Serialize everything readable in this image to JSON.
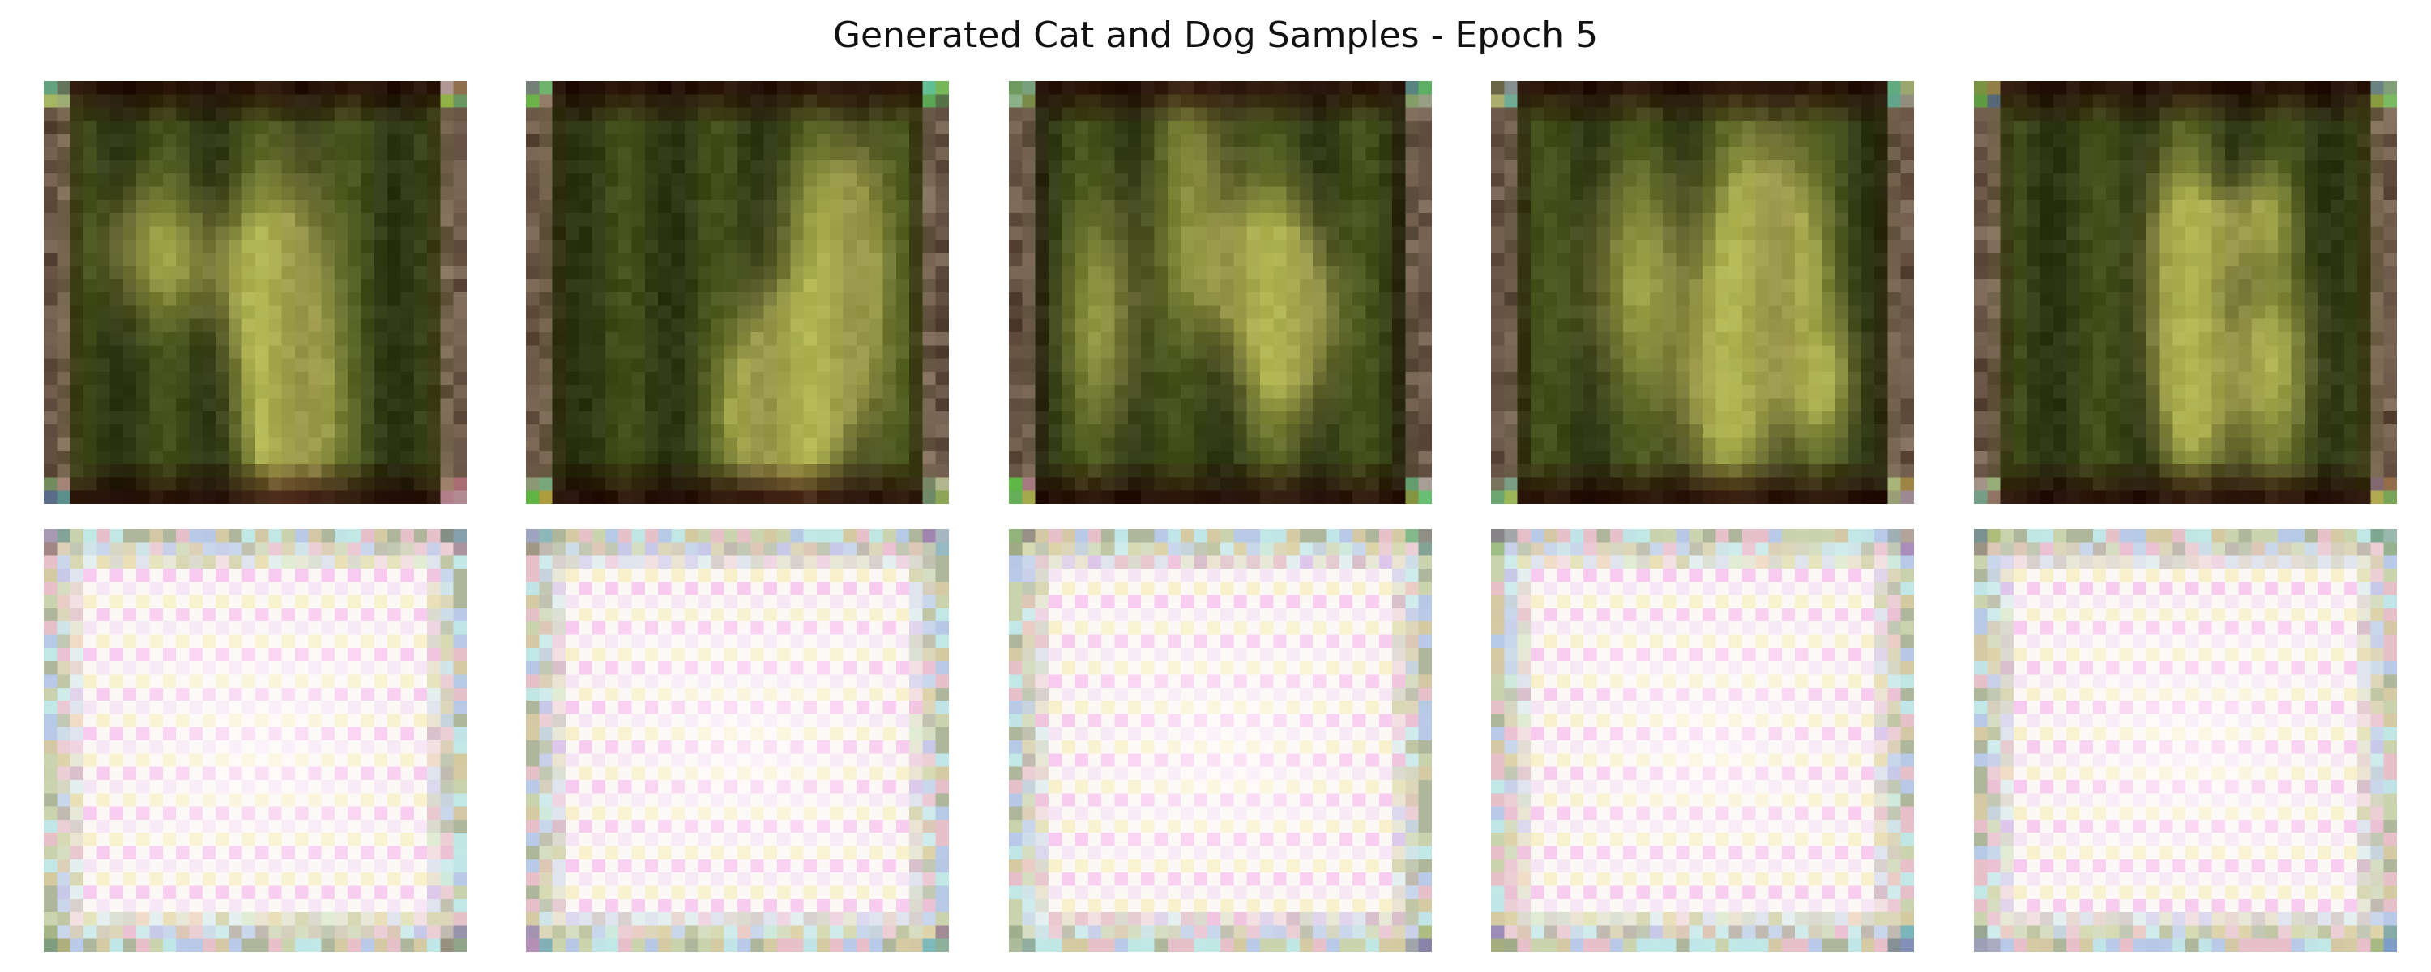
{
  "figure": {
    "title": "Generated Cat and Dog Samples - Epoch 5"
  },
  "grid": {
    "rows": 2,
    "cols": 5
  },
  "samples": [
    {
      "row": 0,
      "style": "dark-green",
      "variant": 0
    },
    {
      "row": 0,
      "style": "dark-green",
      "variant": 1
    },
    {
      "row": 0,
      "style": "dark-green",
      "variant": 2
    },
    {
      "row": 0,
      "style": "dark-green",
      "variant": 3
    },
    {
      "row": 0,
      "style": "dark-green",
      "variant": 4
    },
    {
      "row": 1,
      "style": "pale-checker",
      "variant": 0
    },
    {
      "row": 1,
      "style": "pale-checker",
      "variant": 1
    },
    {
      "row": 1,
      "style": "pale-checker",
      "variant": 2
    },
    {
      "row": 1,
      "style": "pale-checker",
      "variant": 3
    },
    {
      "row": 1,
      "style": "pale-checker",
      "variant": 4
    }
  ],
  "colors": {
    "background": "#ffffff",
    "dark_base": "#2a3312",
    "dark_highlight": "#9a9060",
    "pale_base": "#fbf7f5",
    "pale_pink": "#f8c8ee",
    "pale_yellow": "#f8f0c8"
  }
}
